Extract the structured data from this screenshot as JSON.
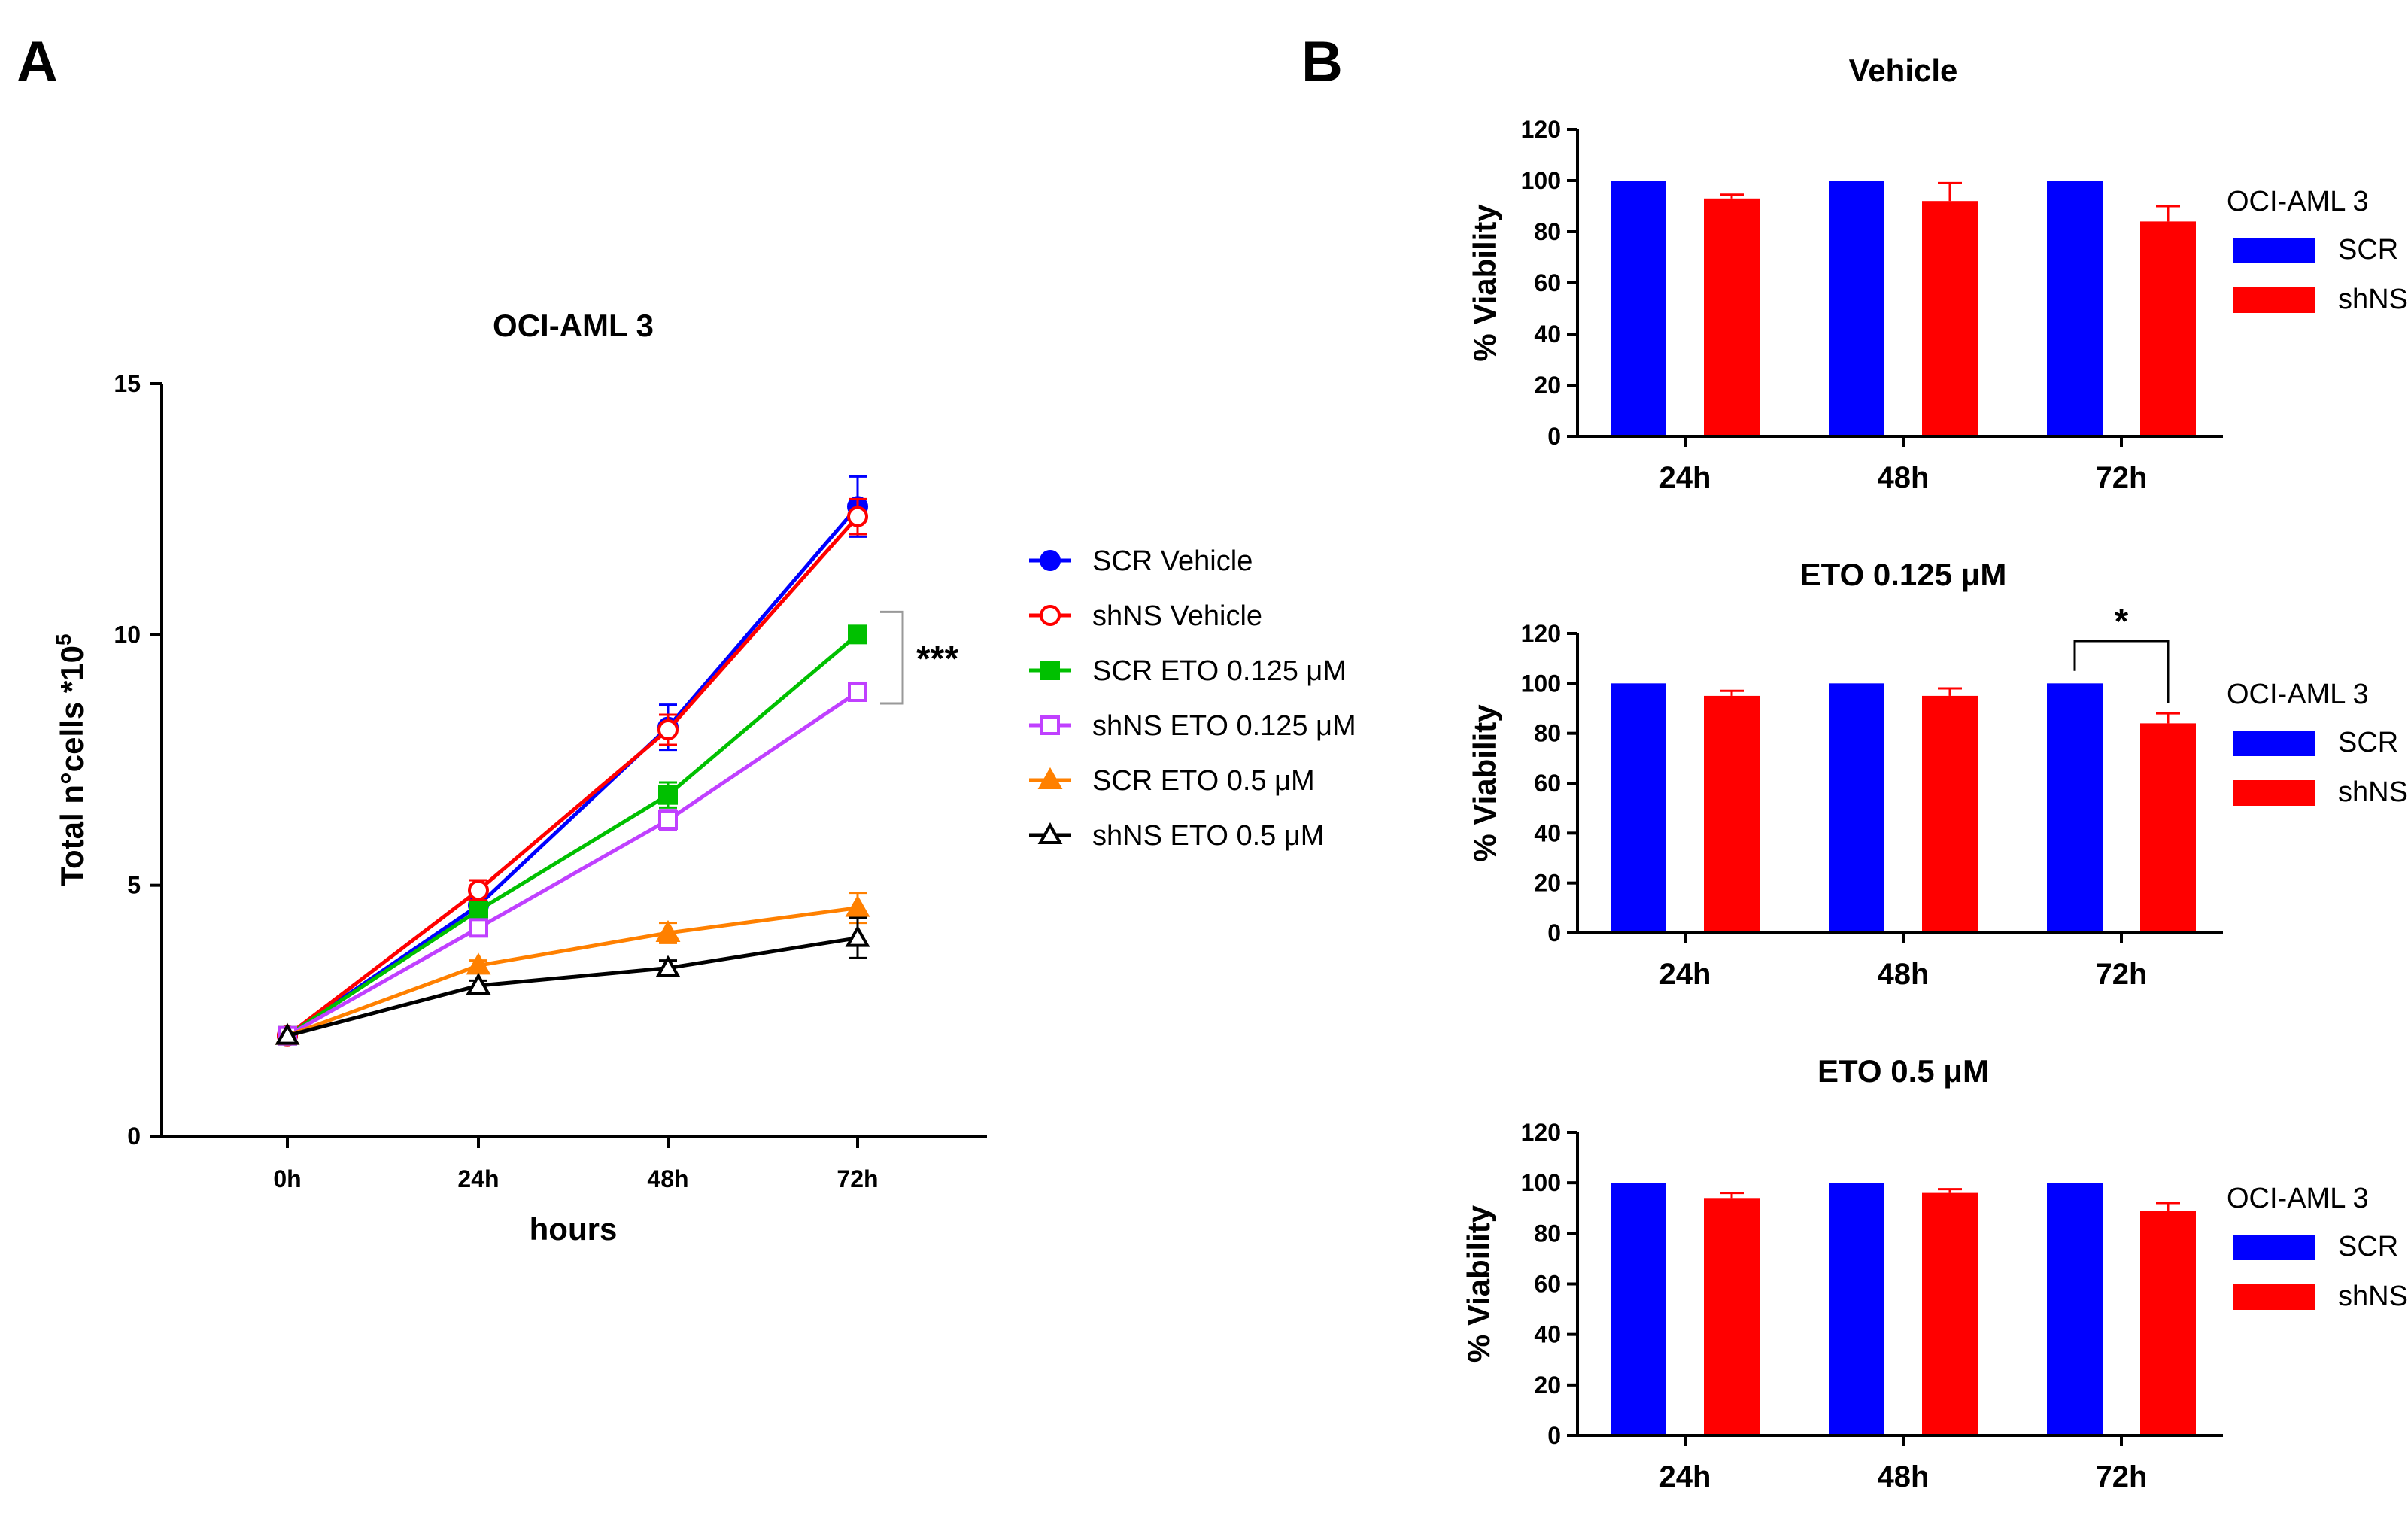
{
  "panels": {
    "a": "A",
    "b": "B"
  },
  "chart_data": [
    {
      "type": "line",
      "panel": "A",
      "title": "OCI-AML 3",
      "xlabel": "hours",
      "ylabel": "Total n°cells *10",
      "ylabel_sup": "5",
      "categories": [
        "0h",
        "24h",
        "48h",
        "72h"
      ],
      "ylim": [
        0,
        15
      ],
      "yticks": [
        0,
        5,
        10,
        15
      ],
      "series": [
        {
          "name": "SCR Vehicle",
          "color": "#0000ff",
          "marker": "circle-filled",
          "values": [
            2.0,
            4.6,
            8.15,
            12.55
          ],
          "errors": [
            0.05,
            0.3,
            0.45,
            0.6
          ]
        },
        {
          "name": "shNS Vehicle",
          "color": "#ff0000",
          "marker": "circle-open",
          "values": [
            2.0,
            4.9,
            8.1,
            12.35
          ],
          "errors": [
            0.05,
            0.2,
            0.3,
            0.35
          ]
        },
        {
          "name": "SCR ETO 0.125 μM",
          "color": "#00c000",
          "marker": "square-filled",
          "values": [
            2.0,
            4.5,
            6.8,
            10.0
          ],
          "errors": [
            0.05,
            0.15,
            0.25,
            0.1
          ]
        },
        {
          "name": "shNS ETO 0.125 μM",
          "color": "#c040ff",
          "marker": "square-open",
          "values": [
            2.0,
            4.15,
            6.3,
            8.85
          ],
          "errors": [
            0.05,
            0.15,
            0.2,
            0.15
          ]
        },
        {
          "name": "SCR ETO 0.5 μM",
          "color": "#ff8000",
          "marker": "triangle-filled",
          "values": [
            2.0,
            3.4,
            4.05,
            4.55
          ],
          "errors": [
            0.05,
            0.1,
            0.2,
            0.3
          ]
        },
        {
          "name": "shNS ETO 0.5 μM",
          "color": "#000000",
          "marker": "triangle-open",
          "values": [
            2.0,
            3.0,
            3.35,
            3.95
          ],
          "errors": [
            0.05,
            0.1,
            0.15,
            0.4
          ]
        }
      ],
      "significance": "***"
    },
    {
      "type": "bar",
      "panel": "B",
      "title": "Vehicle",
      "ylabel": "% Viability",
      "categories": [
        "24h",
        "48h",
        "72h"
      ],
      "ylim": [
        0,
        120
      ],
      "yticks": [
        0,
        20,
        40,
        60,
        80,
        100,
        120
      ],
      "legend_title": "OCI-AML 3",
      "series": [
        {
          "name": "SCR",
          "color": "#0000ff",
          "values": [
            100,
            100,
            100
          ],
          "errors": [
            0,
            0,
            0
          ]
        },
        {
          "name": "shNS",
          "color": "#ff0000",
          "values": [
            93,
            92,
            84
          ],
          "errors": [
            1.5,
            7,
            6
          ]
        }
      ]
    },
    {
      "type": "bar",
      "panel": "B",
      "title": "ETO 0.125 μM",
      "ylabel": "% Viability",
      "categories": [
        "24h",
        "48h",
        "72h"
      ],
      "ylim": [
        0,
        120
      ],
      "yticks": [
        0,
        20,
        40,
        60,
        80,
        100,
        120
      ],
      "legend_title": "OCI-AML 3",
      "series": [
        {
          "name": "SCR",
          "color": "#0000ff",
          "values": [
            100,
            100,
            100
          ],
          "errors": [
            0,
            0,
            0
          ]
        },
        {
          "name": "shNS",
          "color": "#ff0000",
          "values": [
            95,
            95,
            84
          ],
          "errors": [
            2,
            3,
            4
          ]
        }
      ],
      "significance": "*"
    },
    {
      "type": "bar",
      "panel": "B",
      "title": "ETO 0.5 μM",
      "ylabel": "% Viability",
      "categories": [
        "24h",
        "48h",
        "72h"
      ],
      "ylim": [
        0,
        120
      ],
      "yticks": [
        0,
        20,
        40,
        60,
        80,
        100,
        120
      ],
      "legend_title": "OCI-AML 3",
      "series": [
        {
          "name": "SCR",
          "color": "#0000ff",
          "values": [
            100,
            100,
            100
          ],
          "errors": [
            0,
            0,
            0
          ]
        },
        {
          "name": "shNS",
          "color": "#ff0000",
          "values": [
            94,
            96,
            89
          ],
          "errors": [
            2,
            1.5,
            3
          ]
        }
      ]
    }
  ]
}
